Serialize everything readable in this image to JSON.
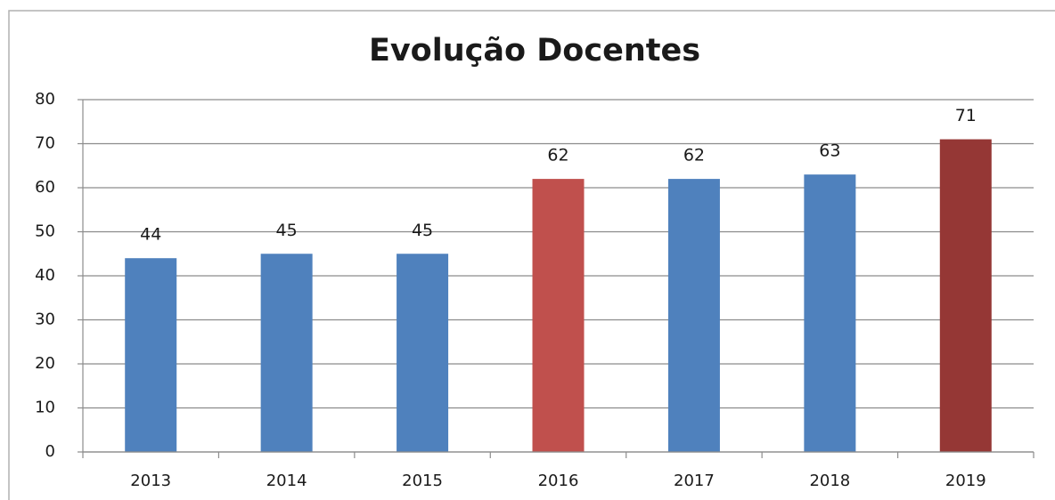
{
  "chart_data": {
    "type": "bar",
    "title": "Evolução Docentes",
    "categories": [
      "2013",
      "2014",
      "2015",
      "2016",
      "2017",
      "2018",
      "2019"
    ],
    "values": [
      44,
      45,
      45,
      62,
      62,
      63,
      71
    ],
    "colors": [
      "#4f81bd",
      "#4f81bd",
      "#4f81bd",
      "#c0504d",
      "#4f81bd",
      "#4f81bd",
      "#953735"
    ],
    "ylim": [
      0,
      80
    ],
    "yticks": [
      0,
      10,
      20,
      30,
      40,
      50,
      60,
      70,
      80
    ],
    "grid": true
  }
}
